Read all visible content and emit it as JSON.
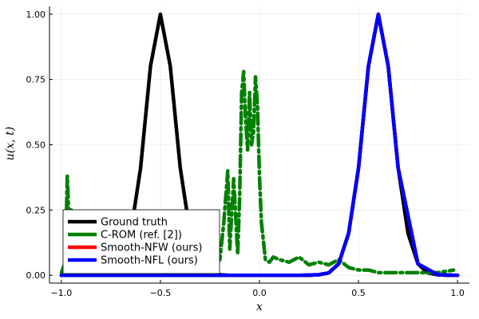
{
  "chart_data": {
    "type": "line",
    "xlabel": "x",
    "ylabel": "u(x, t)",
    "xlim": [
      -1.06,
      1.06
    ],
    "ylim": [
      -0.03,
      1.03
    ],
    "xticks": [
      -1.0,
      -0.5,
      0.0,
      0.5,
      1.0
    ],
    "xtick_labels": [
      "−1.0",
      "−0.5",
      "0.0",
      "0.5",
      "1.0"
    ],
    "yticks": [
      0.0,
      0.25,
      0.5,
      0.75,
      1.0
    ],
    "ytick_labels": [
      "0.00",
      "0.25",
      "0.50",
      "0.75",
      "1.00"
    ],
    "grid": true,
    "legend_position": "bottom-left",
    "series": [
      {
        "name": "Ground truth",
        "color": "#000000",
        "style": "solid",
        "x": [
          -1.0,
          -0.95,
          -0.9,
          -0.85,
          -0.8,
          -0.75,
          -0.7,
          -0.65,
          -0.6,
          -0.55,
          -0.5,
          -0.45,
          -0.4,
          -0.35,
          -0.3,
          -0.25,
          -0.2,
          -0.15,
          -0.1,
          -0.05,
          0.0,
          0.05,
          0.1,
          0.15,
          0.2,
          0.25,
          0.3,
          0.35,
          0.4,
          0.45,
          0.5,
          0.55,
          0.6,
          0.65,
          0.7,
          0.75,
          0.8,
          0.85,
          0.9,
          0.95,
          1.0
        ],
        "y": [
          0.0,
          0.0,
          0.0,
          0.0,
          0.0,
          0.009,
          0.044,
          0.161,
          0.411,
          0.801,
          1.0,
          0.801,
          0.411,
          0.161,
          0.044,
          0.009,
          0.002,
          0.0,
          0.0,
          0.0,
          0.0,
          0.0,
          0.0,
          0.0,
          0.0,
          0.0,
          0.002,
          0.009,
          0.044,
          0.161,
          0.411,
          0.801,
          1.0,
          0.801,
          0.411,
          0.161,
          0.044,
          0.009,
          0.002,
          0.0,
          0.0
        ]
      },
      {
        "name": "C-ROM (ref. [2])",
        "color": "#008000",
        "style": "dashdot",
        "x": [
          -1.0,
          -0.98,
          -0.97,
          -0.96,
          -0.95,
          -0.93,
          -0.9,
          -0.85,
          -0.8,
          -0.7,
          -0.6,
          -0.5,
          -0.4,
          -0.3,
          -0.25,
          -0.2,
          -0.18,
          -0.16,
          -0.15,
          -0.13,
          -0.11,
          -0.1,
          -0.09,
          -0.08,
          -0.07,
          -0.06,
          -0.05,
          -0.04,
          -0.03,
          -0.02,
          -0.01,
          0.0,
          0.01,
          0.02,
          0.03,
          0.05,
          0.07,
          0.1,
          0.15,
          0.2,
          0.25,
          0.3,
          0.35,
          0.4,
          0.45,
          0.5,
          0.55,
          0.6,
          0.7,
          0.8,
          0.9,
          0.98
        ],
        "y": [
          0.01,
          0.05,
          0.38,
          0.18,
          0.25,
          0.08,
          0.02,
          0.01,
          0.0,
          0.0,
          0.0,
          0.0,
          0.0,
          0.01,
          0.02,
          0.06,
          0.2,
          0.4,
          0.1,
          0.37,
          0.08,
          0.3,
          0.7,
          0.78,
          0.6,
          0.48,
          0.7,
          0.5,
          0.55,
          0.76,
          0.65,
          0.38,
          0.2,
          0.13,
          0.06,
          0.05,
          0.07,
          0.06,
          0.05,
          0.07,
          0.04,
          0.05,
          0.04,
          0.06,
          0.03,
          0.02,
          0.02,
          0.01,
          0.01,
          0.01,
          0.01,
          0.02
        ]
      },
      {
        "name": "Smooth-NFW (ours)",
        "color": "#ff0000",
        "style": "solid",
        "x": [
          -1.0,
          -0.9,
          -0.8,
          -0.7,
          -0.6,
          -0.5,
          -0.4,
          -0.3,
          -0.2,
          -0.1,
          0.0,
          0.1,
          0.2,
          0.3,
          0.35,
          0.4,
          0.45,
          0.5,
          0.55,
          0.6,
          0.65,
          0.7,
          0.8,
          0.9,
          1.0
        ],
        "y": [
          0.0,
          0.0,
          0.0,
          0.0,
          0.0,
          0.0,
          0.0,
          0.0,
          0.0,
          0.0,
          0.0,
          0.0,
          0.0,
          0.002,
          0.009,
          0.044,
          0.161,
          0.411,
          0.801,
          1.0,
          0.801,
          0.411,
          0.044,
          0.002,
          0.0
        ]
      },
      {
        "name": "Smooth-NFL (ours)",
        "color": "#0000ff",
        "style": "solid",
        "x": [
          -1.0,
          -0.9,
          -0.8,
          -0.7,
          -0.6,
          -0.5,
          -0.4,
          -0.3,
          -0.2,
          -0.1,
          0.0,
          0.1,
          0.2,
          0.3,
          0.35,
          0.4,
          0.45,
          0.5,
          0.55,
          0.6,
          0.65,
          0.7,
          0.8,
          0.9,
          1.0
        ],
        "y": [
          0.0,
          0.0,
          0.0,
          0.0,
          0.0,
          0.0,
          0.0,
          0.0,
          0.0,
          0.0,
          0.0,
          0.0,
          0.0,
          0.002,
          0.009,
          0.044,
          0.161,
          0.411,
          0.801,
          1.0,
          0.801,
          0.411,
          0.044,
          0.002,
          0.0
        ]
      }
    ]
  }
}
